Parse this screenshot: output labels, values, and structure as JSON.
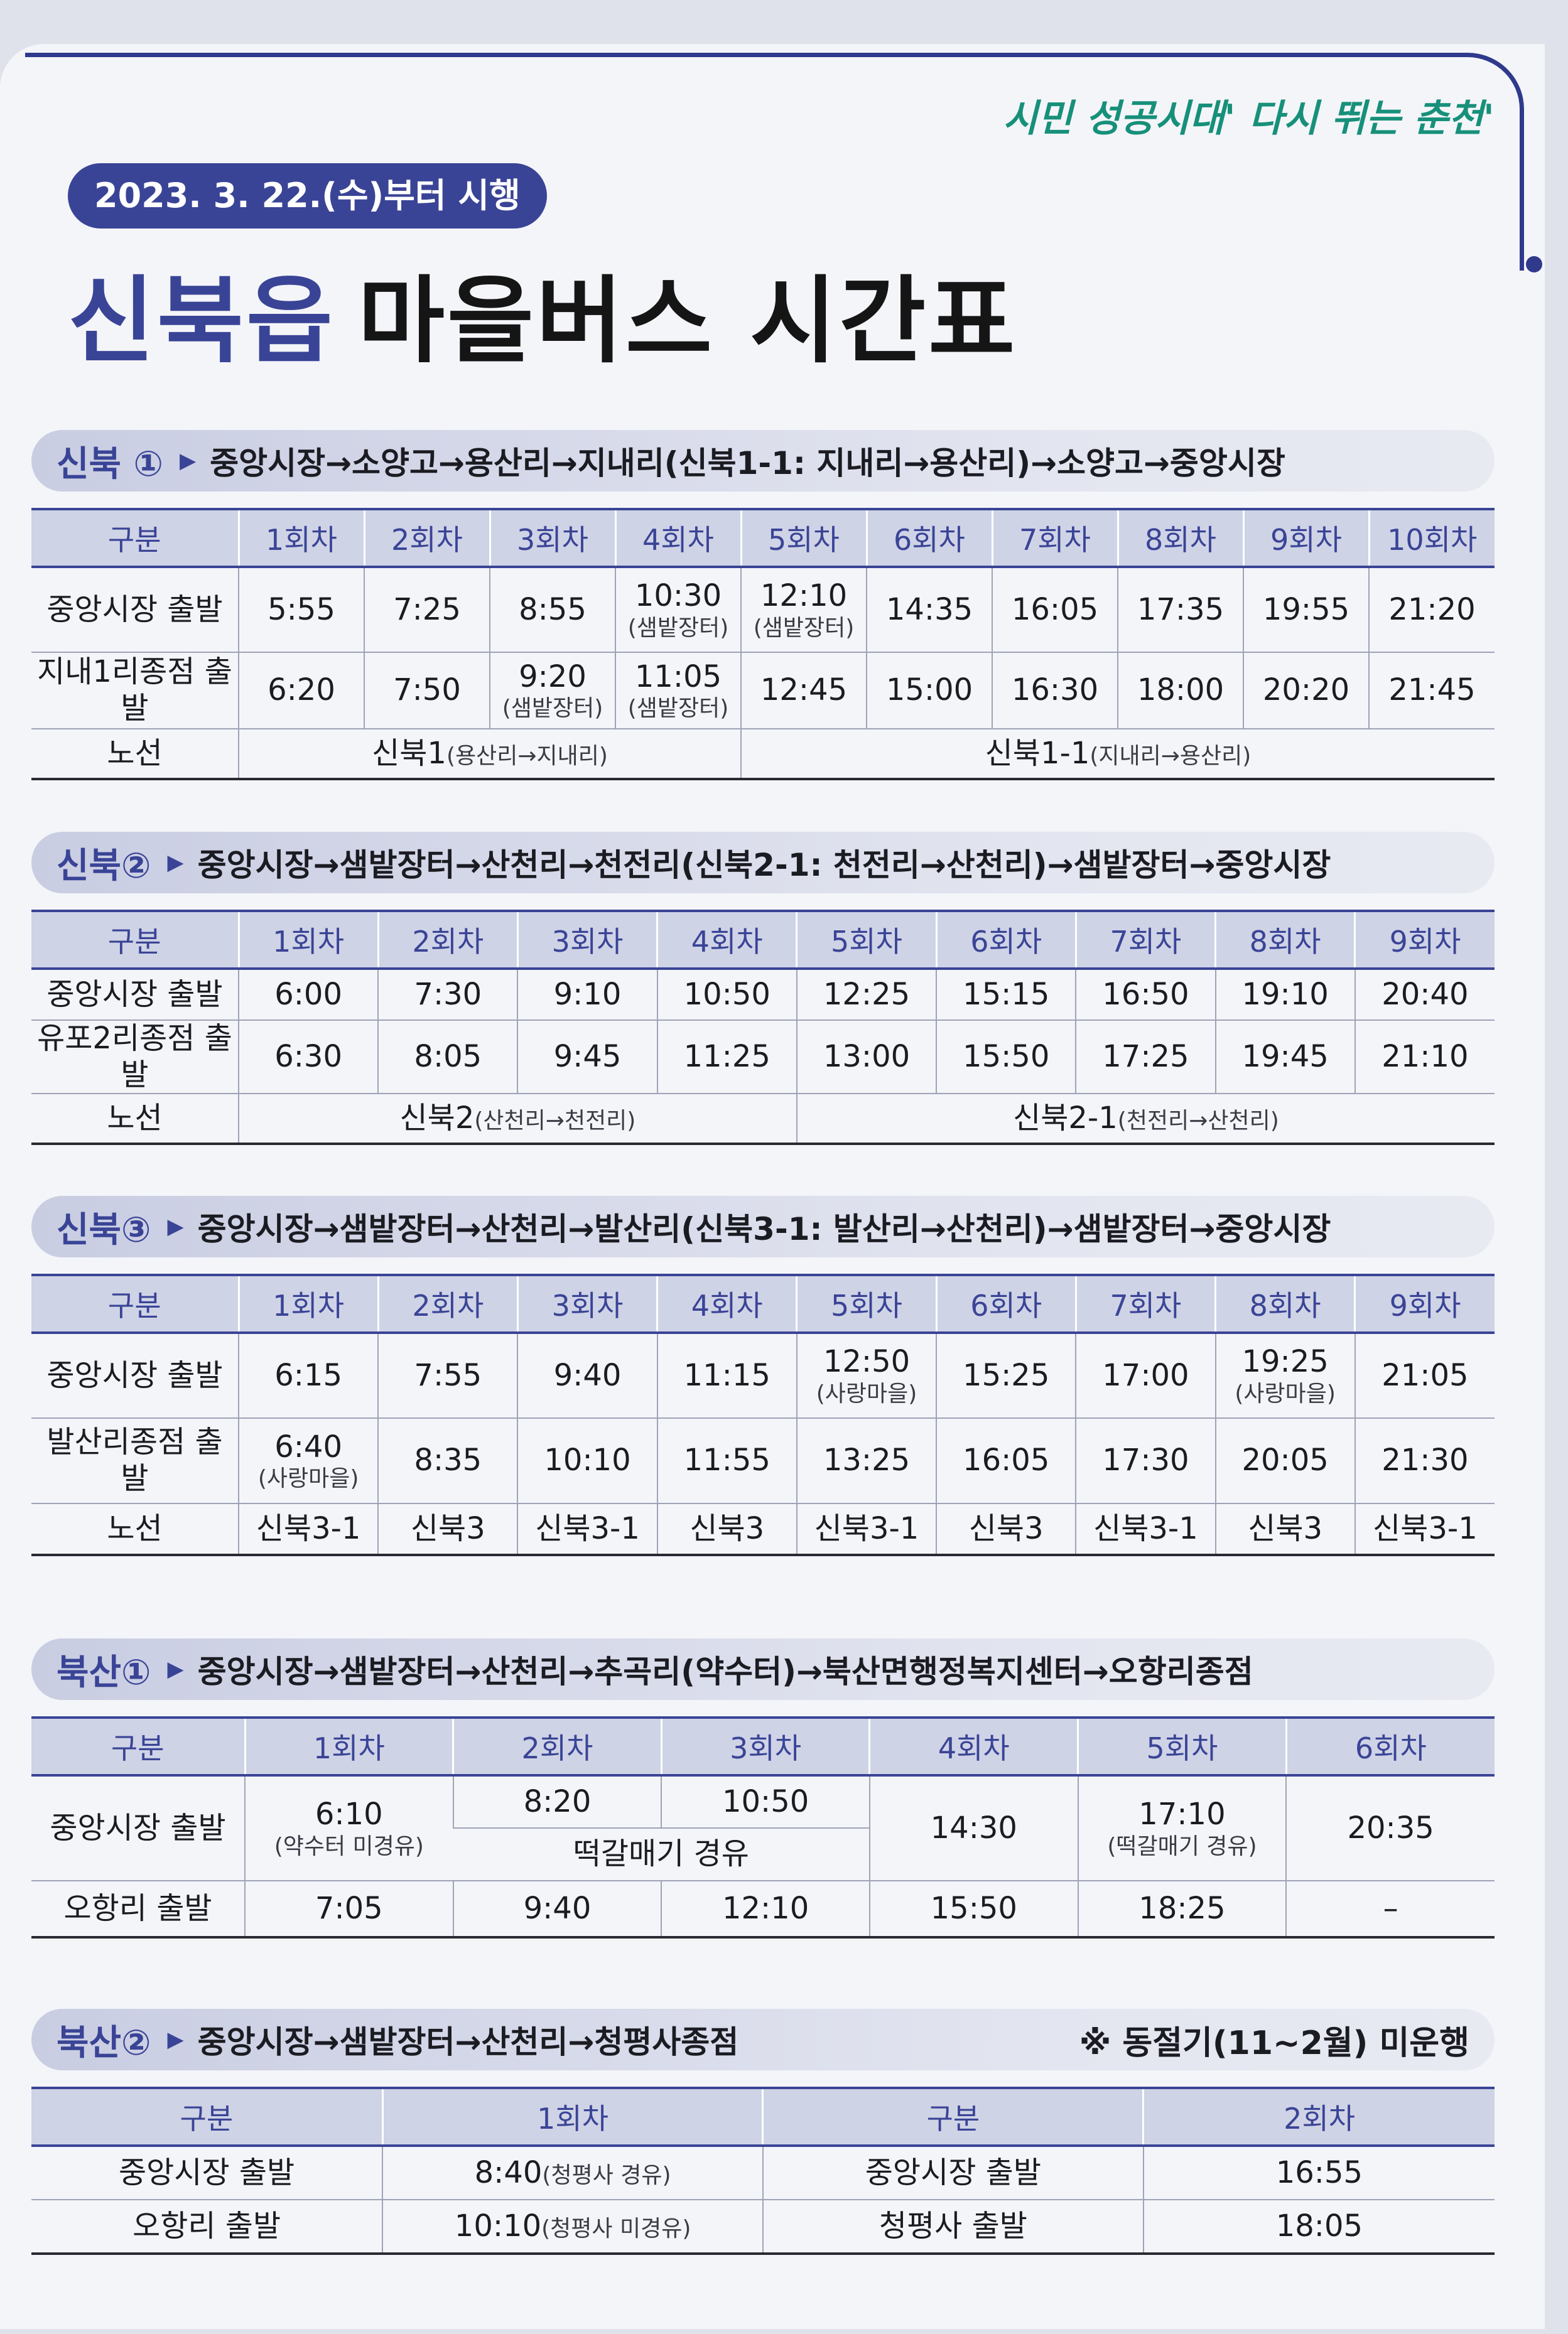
{
  "header": {
    "slogan": "시민 성공시대' 다시 뛰는 춘천'",
    "date": "2023. 3. 22.(수)부터 시행",
    "title_highlight": "신북읍",
    "title_rest": "마을버스 시간표"
  },
  "sections": [
    {
      "name": "신북 ①",
      "path": "중앙시장→소양고→용산리→지내리(신북1-1: 지내리→용산리)→소양고→중앙시장",
      "headers": [
        "구분",
        "1회차",
        "2회차",
        "3회차",
        "4회차",
        "5회차",
        "6회차",
        "7회차",
        "8회차",
        "9회차",
        "10회차"
      ],
      "rows": [
        {
          "label": "중앙시장 출발",
          "cells": [
            {
              "t": "5:55"
            },
            {
              "t": "7:25"
            },
            {
              "t": "8:55"
            },
            {
              "t": "10:30",
              "s": "(샘밭장터)"
            },
            {
              "t": "12:10",
              "s": "(샘밭장터)"
            },
            {
              "t": "14:35"
            },
            {
              "t": "16:05"
            },
            {
              "t": "17:35"
            },
            {
              "t": "19:55"
            },
            {
              "t": "21:20"
            }
          ]
        },
        {
          "label": "지내1리종점 출발",
          "cells": [
            {
              "t": "6:20"
            },
            {
              "t": "7:50"
            },
            {
              "t": "9:20",
              "s": "(샘밭장터)"
            },
            {
              "t": "11:05",
              "s": "(샘밭장터)"
            },
            {
              "t": "12:45"
            },
            {
              "t": "15:00"
            },
            {
              "t": "16:30"
            },
            {
              "t": "18:00"
            },
            {
              "t": "20:20"
            },
            {
              "t": "21:45"
            }
          ]
        }
      ],
      "route_row": {
        "label": "노선",
        "a": "신북1",
        "a_sub": "(용산리→지내리)",
        "b": "신북1-1",
        "b_sub": "(지내리→용산리)"
      }
    },
    {
      "name": "신북②",
      "path": "중앙시장→샘밭장터→산천리→천전리(신북2-1: 천전리→산천리)→샘밭장터→중앙시장",
      "headers": [
        "구분",
        "1회차",
        "2회차",
        "3회차",
        "4회차",
        "5회차",
        "6회차",
        "7회차",
        "8회차",
        "9회차"
      ],
      "rows": [
        {
          "label": "중앙시장 출발",
          "cells": [
            "6:00",
            "7:30",
            "9:10",
            "10:50",
            "12:25",
            "15:15",
            "16:50",
            "19:10",
            "20:40"
          ]
        },
        {
          "label": "유포2리종점 출발",
          "cells": [
            "6:30",
            "8:05",
            "9:45",
            "11:25",
            "13:00",
            "15:50",
            "17:25",
            "19:45",
            "21:10"
          ]
        }
      ],
      "route_row": {
        "label": "노선",
        "a": "신북2",
        "a_sub": "(산천리→천전리)",
        "b": "신북2-1",
        "b_sub": "(천전리→산천리)"
      }
    },
    {
      "name": "신북③",
      "path": "중앙시장→샘밭장터→산천리→발산리(신북3-1: 발산리→산천리)→샘밭장터→중앙시장",
      "headers": [
        "구분",
        "1회차",
        "2회차",
        "3회차",
        "4회차",
        "5회차",
        "6회차",
        "7회차",
        "8회차",
        "9회차"
      ],
      "rows": [
        {
          "label": "중앙시장 출발",
          "cells": [
            {
              "t": "6:15"
            },
            {
              "t": "7:55"
            },
            {
              "t": "9:40"
            },
            {
              "t": "11:15"
            },
            {
              "t": "12:50",
              "s": "(사랑마을)"
            },
            {
              "t": "15:25"
            },
            {
              "t": "17:00"
            },
            {
              "t": "19:25",
              "s": "(사랑마을)"
            },
            {
              "t": "21:05"
            }
          ]
        },
        {
          "label": "발산리종점 출발",
          "cells": [
            {
              "t": "6:40",
              "s": "(사랑마을)"
            },
            {
              "t": "8:35"
            },
            {
              "t": "10:10"
            },
            {
              "t": "11:55"
            },
            {
              "t": "13:25"
            },
            {
              "t": "16:05"
            },
            {
              "t": "17:30"
            },
            {
              "t": "20:05"
            },
            {
              "t": "21:30"
            }
          ]
        },
        {
          "label": "노선",
          "cells": [
            {
              "t": "신북3-1"
            },
            {
              "t": "신북3"
            },
            {
              "t": "신북3-1"
            },
            {
              "t": "신북3"
            },
            {
              "t": "신북3-1"
            },
            {
              "t": "신북3"
            },
            {
              "t": "신북3-1"
            },
            {
              "t": "신북3"
            },
            {
              "t": "신북3-1"
            }
          ]
        }
      ]
    },
    {
      "name": "북산①",
      "path": "중앙시장→샘밭장터→산천리→추곡리(약수터)→북산면행정복지센터→오항리종점",
      "headers": [
        "구분",
        "1회차",
        "2회차",
        "3회차",
        "4회차",
        "5회차",
        "6회차"
      ],
      "row1_label": "중앙시장 출발",
      "c1": "6:10",
      "c1_sub": "(약수터 미경유)",
      "c2": "8:20",
      "c3": "10:50",
      "via": "떡갈매기 경유",
      "c4": "14:30",
      "c5": "17:10",
      "c5_sub": "(떡갈매기 경유)",
      "c6": "20:35",
      "row2_label": "오항리 출발",
      "r2": [
        "7:05",
        "9:40",
        "12:10",
        "15:50",
        "18:25",
        "–"
      ]
    },
    {
      "name": "북산②",
      "path": "중앙시장→샘밭장터→산천리→청평사종점",
      "note": "※ 동절기(11~2월) 미운행",
      "headers": [
        "구분",
        "1회차",
        "구분",
        "2회차"
      ],
      "rows": [
        {
          "a": "중앙시장 출발",
          "b": "8:40",
          "b_sub": "(청평사 경유)",
          "c": "중앙시장 출발",
          "d": "16:55"
        },
        {
          "a": "오항리 출발",
          "b": "10:10",
          "b_sub": "(청평사 미경유)",
          "c": "청평사 출발",
          "d": "18:05"
        }
      ]
    }
  ]
}
